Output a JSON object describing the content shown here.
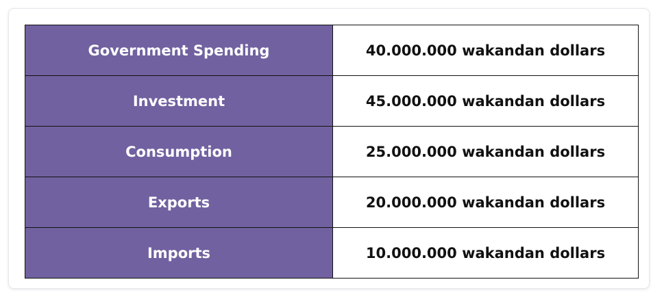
{
  "colors": {
    "label_background": "#7161a0",
    "label_text": "#ffffff",
    "value_background": "#ffffff",
    "value_text": "#111111",
    "border": "#111111"
  },
  "table": {
    "rows": [
      {
        "label": "Government Spending",
        "value": "40.000.000 wakandan dollars"
      },
      {
        "label": "Investment",
        "value": "45.000.000 wakandan dollars"
      },
      {
        "label": "Consumption",
        "value": "25.000.000 wakandan dollars"
      },
      {
        "label": "Exports",
        "value": "20.000.000 wakandan dollars"
      },
      {
        "label": "Imports",
        "value": "10.000.000 wakandan dollars"
      }
    ]
  }
}
